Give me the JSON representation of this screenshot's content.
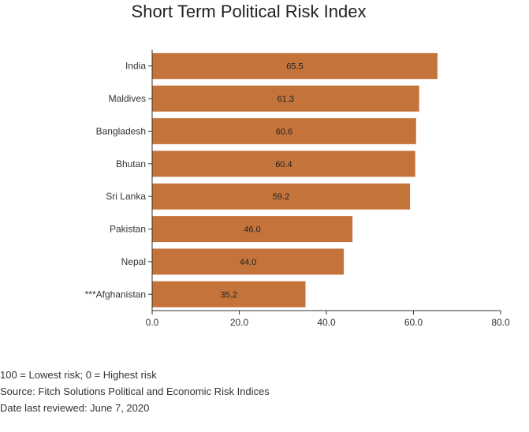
{
  "chart_data": {
    "type": "bar",
    "orientation": "horizontal",
    "title": "Short Term Political Risk Index",
    "categories": [
      "India",
      "Maldives",
      "Bangladesh",
      "Bhutan",
      "Sri Lanka",
      "Pakistan",
      "Nepal",
      "***Afghanistan"
    ],
    "values": [
      65.5,
      61.3,
      60.6,
      60.4,
      59.2,
      46.0,
      44.0,
      35.2
    ],
    "value_labels": [
      "65.5",
      "61.3",
      "60.6",
      "60.4",
      "59.2",
      "46.0",
      "44.0",
      "35.2"
    ],
    "xlim": [
      0,
      80
    ],
    "x_ticks": [
      0,
      20,
      40,
      60,
      80
    ],
    "x_tick_labels": [
      "0.0",
      "20.0",
      "40.0",
      "60.0",
      "80.0"
    ],
    "xlabel": "",
    "ylabel": "",
    "grid": false,
    "bar_color": "#c4743a"
  },
  "notes": [
    "100 = Lowest risk; 0 = Highest risk",
    "Source: Fitch Solutions Political and Economic Risk Indices",
    "Date last reviewed: June 7, 2020"
  ]
}
